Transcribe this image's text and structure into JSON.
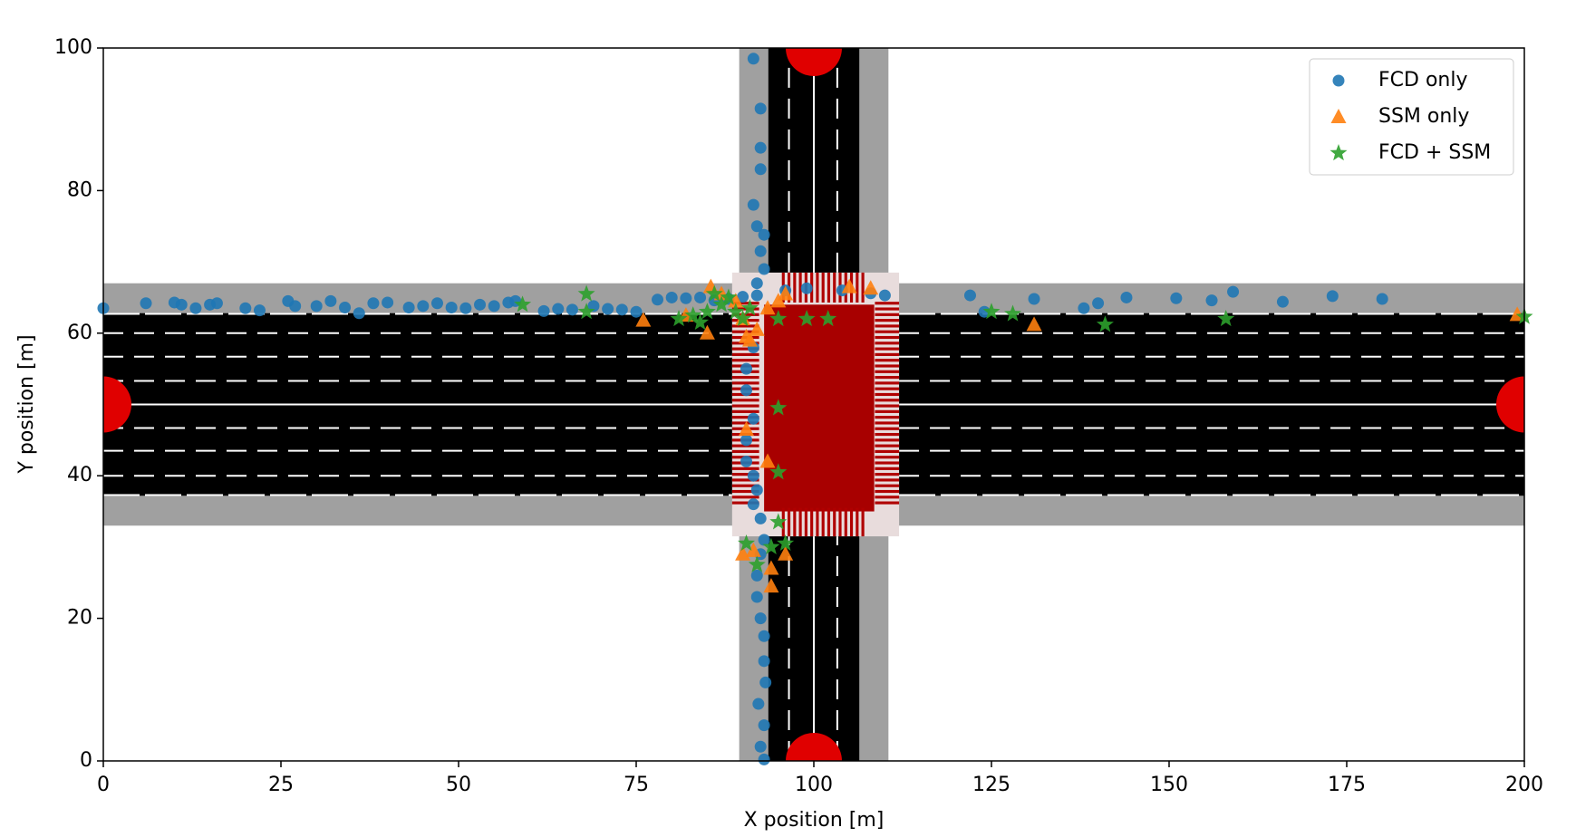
{
  "chart_data": {
    "type": "scatter",
    "xlabel": "X position [m]",
    "ylabel": "Y position [m]",
    "xlim": [
      0,
      200
    ],
    "ylim": [
      0,
      100
    ],
    "xticks": [
      0,
      25,
      50,
      75,
      100,
      125,
      150,
      175,
      200
    ],
    "yticks": [
      0,
      20,
      40,
      60,
      80,
      100
    ],
    "legend": "upper right",
    "series": [
      {
        "name": "FCD only",
        "color": "#1f77b4",
        "marker": "circle",
        "x": [
          0,
          6,
          10,
          11,
          13,
          15,
          16,
          20,
          22,
          26,
          27,
          30,
          32,
          34,
          36,
          38,
          40,
          43,
          45,
          47,
          49,
          51,
          53,
          55,
          57,
          58,
          62,
          64,
          66,
          69,
          71,
          73,
          75,
          78,
          80,
          82,
          84,
          86,
          88,
          90,
          92,
          96,
          99,
          104,
          108,
          110,
          122,
          124,
          131,
          138,
          140,
          144,
          151,
          156,
          159,
          166,
          173,
          180,
          91.5,
          92.5,
          92.5,
          92.5,
          91.5,
          92,
          93,
          92.5,
          93,
          92,
          91.5,
          90.5,
          90.5,
          91.5,
          90.5,
          90.5,
          91.5,
          92,
          91.5,
          92.5,
          93,
          92.5,
          92,
          92,
          92.5,
          93,
          93,
          93.2,
          92.2,
          93,
          92.5,
          93
        ],
        "y": [
          63.5,
          64.2,
          64.3,
          64,
          63.5,
          64,
          64.2,
          63.5,
          63.2,
          64.5,
          63.8,
          63.8,
          64.5,
          63.6,
          62.8,
          64.2,
          64.3,
          63.6,
          63.8,
          64.2,
          63.6,
          63.5,
          64,
          63.8,
          64.3,
          64.5,
          63.1,
          63.4,
          63.3,
          63.8,
          63.4,
          63.3,
          63,
          64.7,
          65,
          64.9,
          65,
          64.6,
          64.8,
          65.1,
          65.3,
          66,
          66.3,
          66,
          65.6,
          65.3,
          65.3,
          63,
          64.8,
          63.5,
          64.2,
          65,
          64.9,
          64.6,
          65.8,
          64.4,
          65.2,
          64.8,
          98.5,
          91.5,
          86,
          83,
          78,
          75,
          73.8,
          71.5,
          69,
          67,
          58,
          55,
          52,
          48,
          45,
          42,
          40,
          38,
          36,
          34,
          31,
          29,
          26,
          23,
          20,
          17.5,
          14,
          11,
          8,
          5,
          2,
          0.2
        ]
      },
      {
        "name": "SSM only",
        "color": "#ff7f0e",
        "marker": "triangle",
        "x": [
          76,
          82,
          85,
          85.5,
          87,
          89,
          90,
          90.5,
          91,
          92,
          93.5,
          95,
          96,
          105,
          108,
          131,
          90.5,
          93.5,
          90,
          91.5,
          94,
          94,
          96,
          199
        ],
        "y": [
          61.8,
          62.5,
          60,
          66.5,
          65.5,
          64.5,
          62,
          59.5,
          59,
          60.5,
          63.5,
          64.5,
          65.5,
          66.5,
          66.3,
          61.2,
          46.5,
          42,
          29,
          29.5,
          27,
          24.5,
          29,
          62.6
        ]
      },
      {
        "name": "FCD + SSM",
        "color": "#2ca02c",
        "marker": "star",
        "x": [
          59,
          68,
          68,
          81,
          83,
          84,
          85,
          86,
          87,
          88,
          89,
          90,
          91,
          95,
          99,
          102,
          95,
          95,
          95,
          90.5,
          92,
          94,
          96,
          125,
          128,
          141,
          158,
          200
        ],
        "y": [
          64,
          65.5,
          63,
          62,
          62.5,
          61.5,
          63,
          65.5,
          64,
          65,
          63,
          62,
          63.5,
          62,
          62,
          62,
          49.5,
          40.5,
          33.5,
          30.5,
          27.5,
          30,
          30.5,
          63,
          62.7,
          61.2,
          62,
          62.3
        ]
      }
    ]
  }
}
